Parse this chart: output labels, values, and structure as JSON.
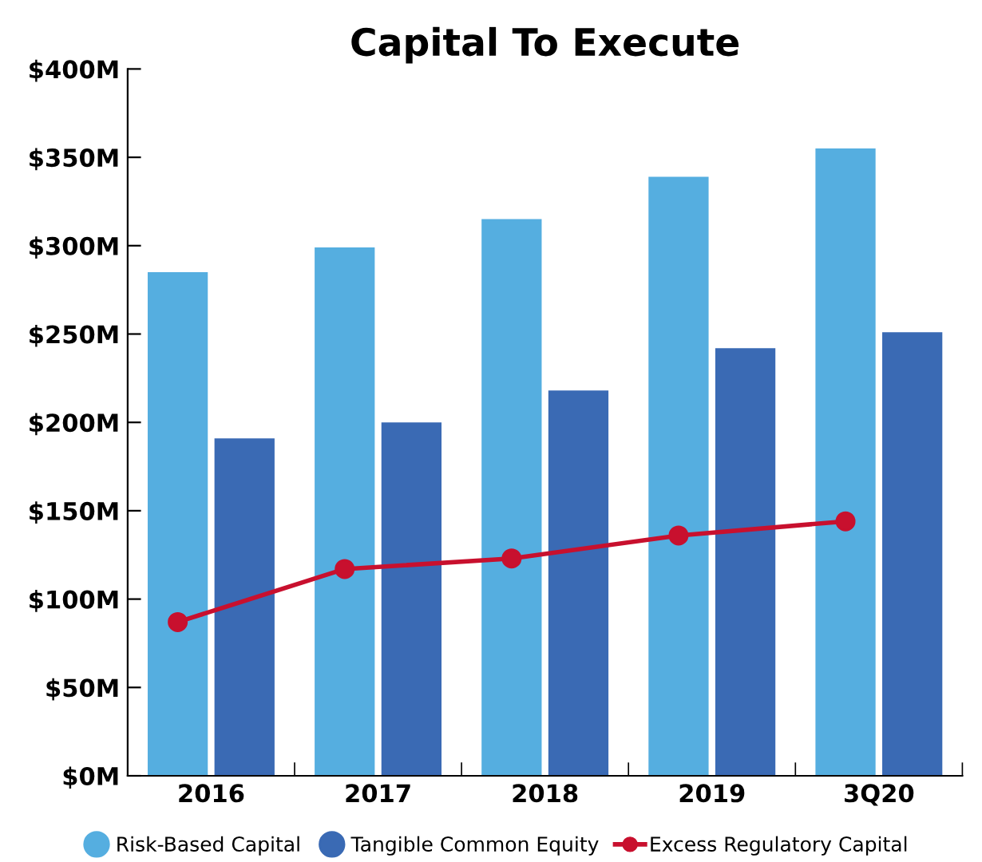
{
  "chart_data": {
    "type": "bar",
    "title": "Capital To Execute",
    "categories": [
      "2016",
      "2017",
      "2018",
      "2019",
      "3Q20"
    ],
    "series": [
      {
        "name": "Risk-Based Capital",
        "color": "#55aee0",
        "values": [
          285,
          299,
          315,
          339,
          355
        ]
      },
      {
        "name": "Tangible Common Equity",
        "color": "#3a6ab4",
        "values": [
          191,
          200,
          218,
          242,
          251
        ]
      },
      {
        "name": "Excess Regulatory Capital",
        "color": "#c8102e",
        "type": "line",
        "marker": "circle",
        "values": [
          87,
          117,
          123,
          136,
          144
        ]
      }
    ],
    "ylim": [
      0,
      400
    ],
    "yticks": [
      {
        "value": 0,
        "label": "$0M"
      },
      {
        "value": 50,
        "label": "$50M"
      },
      {
        "value": 100,
        "label": "$100M"
      },
      {
        "value": 150,
        "label": "$150M"
      },
      {
        "value": 200,
        "label": "$200M"
      },
      {
        "value": 250,
        "label": "$250M"
      },
      {
        "value": 300,
        "label": "$300M"
      },
      {
        "value": 350,
        "label": "$350M"
      },
      {
        "value": 400,
        "label": "$400M"
      }
    ],
    "grid": false,
    "legend": "bottom"
  }
}
